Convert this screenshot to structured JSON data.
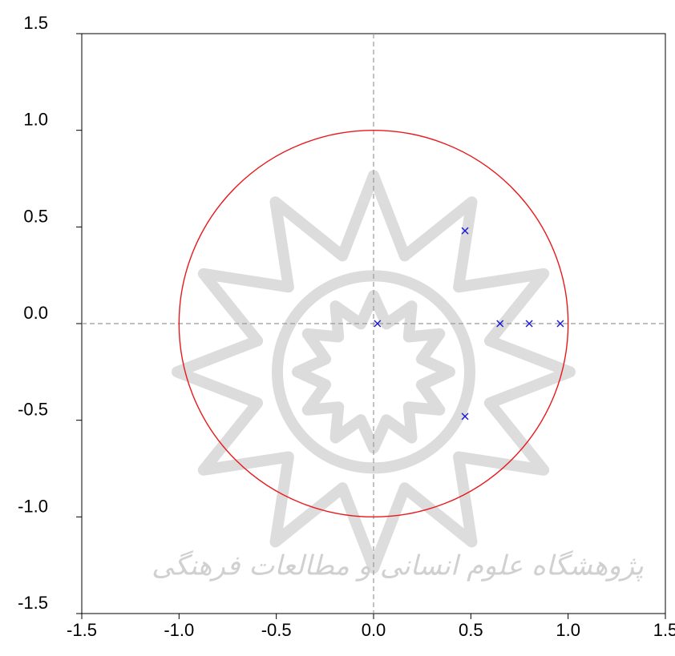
{
  "chart_data": {
    "type": "scatter",
    "title": "",
    "xlabel": "",
    "ylabel": "",
    "xlim": [
      -1.5,
      1.5
    ],
    "ylim": [
      -1.5,
      1.5
    ],
    "x_ticks": [
      -1.5,
      -1.0,
      -0.5,
      0.0,
      0.5,
      1.0,
      1.5
    ],
    "x_tick_labels": [
      "-1.5",
      "-1.0",
      "-0.5",
      "0.0",
      "0.5",
      "1.0",
      "1.5"
    ],
    "y_ticks": [
      1.5,
      1.0,
      0.5,
      0.0,
      -0.5,
      -1.0,
      -1.5
    ],
    "y_tick_labels": [
      "1.5",
      "1.0",
      "0.5",
      "0.0",
      "-0.5",
      "-1.0",
      "-1.5"
    ],
    "grid": false,
    "reference_lines": {
      "x": 0,
      "y": 0,
      "style": "dashed",
      "color": "#999999"
    },
    "unit_circle": {
      "center": [
        0,
        0
      ],
      "radius": 1,
      "color": "#e8191c"
    },
    "series": [
      {
        "marker": "x",
        "color": "#1a1acc",
        "points": [
          {
            "x": 0.02,
            "y": 0.0
          },
          {
            "x": 0.47,
            "y": 0.48
          },
          {
            "x": 0.47,
            "y": -0.48
          },
          {
            "x": 0.65,
            "y": 0.0
          },
          {
            "x": 0.8,
            "y": 0.0
          },
          {
            "x": 0.96,
            "y": 0.0
          }
        ]
      }
    ]
  },
  "watermark": {
    "icon": "rosette-logo-icon",
    "text": "پژوهشگاه علوم انسانی و مطالعات فرهنگی",
    "color": "#d9d9d9"
  }
}
